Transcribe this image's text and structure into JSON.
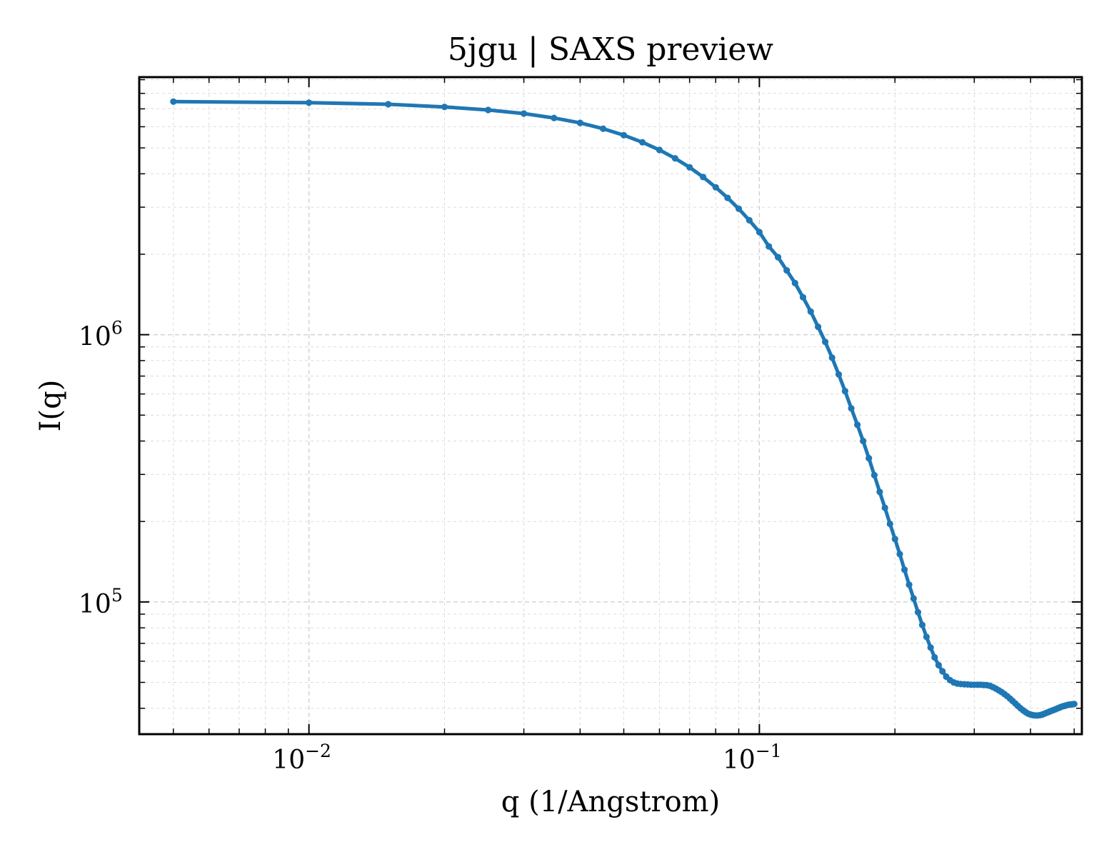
{
  "chart_data": {
    "type": "line",
    "title": "5jgu | SAXS preview",
    "xlabel": "q (1/Angstrom)",
    "ylabel": "I(q)",
    "xscale": "log",
    "yscale": "log",
    "xlim": [
      0.0042,
      0.52
    ],
    "ylim": [
      32000,
      9200000
    ],
    "xticks": [
      {
        "value": 0.01,
        "base": "10",
        "exp": "−2"
      },
      {
        "value": 0.1,
        "base": "10",
        "exp": "−1"
      }
    ],
    "yticks": [
      {
        "value": 100000,
        "base": "10",
        "exp": "5"
      },
      {
        "value": 1000000,
        "base": "10",
        "exp": "6"
      }
    ],
    "grid": true,
    "series": [
      {
        "color": "#1f77b4",
        "marker": "circle",
        "x": [
          0.005,
          0.01,
          0.015,
          0.02,
          0.025,
          0.03,
          0.035,
          0.04,
          0.045,
          0.05,
          0.055,
          0.06,
          0.065,
          0.07,
          0.075,
          0.08,
          0.085,
          0.09,
          0.095,
          0.1,
          0.105,
          0.11,
          0.115,
          0.12,
          0.125,
          0.13,
          0.135,
          0.14,
          0.145,
          0.15,
          0.155,
          0.16,
          0.165,
          0.17,
          0.175,
          0.18,
          0.185,
          0.19,
          0.195,
          0.2,
          0.205,
          0.21,
          0.215,
          0.22,
          0.225,
          0.23,
          0.235,
          0.24,
          0.245,
          0.25,
          0.255,
          0.26,
          0.265,
          0.27,
          0.275,
          0.28,
          0.285,
          0.29,
          0.295,
          0.3,
          0.305,
          0.31,
          0.315,
          0.32,
          0.325,
          0.33,
          0.335,
          0.34,
          0.345,
          0.35,
          0.355,
          0.36,
          0.365,
          0.37,
          0.375,
          0.38,
          0.385,
          0.39,
          0.395,
          0.4,
          0.405,
          0.41,
          0.415,
          0.42,
          0.425,
          0.43,
          0.435,
          0.44,
          0.445,
          0.45,
          0.455,
          0.46,
          0.465,
          0.47,
          0.475,
          0.48,
          0.485,
          0.49,
          0.495,
          0.5
        ],
        "y": [
          7450000,
          7380000,
          7280000,
          7120000,
          6930000,
          6720000,
          6470000,
          6200000,
          5900000,
          5580000,
          5250000,
          4910000,
          4570000,
          4230000,
          3890000,
          3560000,
          3250000,
          2960000,
          2680000,
          2420000,
          2140000,
          1950000,
          1740000,
          1560000,
          1380000,
          1220000,
          1070000,
          940000,
          820000,
          710000,
          615000,
          530000,
          460000,
          400000,
          345000,
          298000,
          258000,
          225000,
          196000,
          172000,
          151000,
          132000,
          116000,
          103000,
          91500,
          82000,
          74000,
          67500,
          62000,
          58000,
          55000,
          52500,
          51000,
          50000,
          49500,
          49300,
          49200,
          49100,
          49000,
          49000,
          49000,
          49000,
          48900,
          48800,
          48500,
          48000,
          47400,
          46700,
          46000,
          45200,
          44400,
          43500,
          42600,
          41700,
          40800,
          40000,
          39300,
          38700,
          38200,
          37900,
          37700,
          37600,
          37600,
          37700,
          37900,
          38200,
          38500,
          38800,
          39100,
          39400,
          39700,
          40000,
          40300,
          40600,
          40800,
          41000,
          41200,
          41300,
          41400,
          41500
        ]
      }
    ]
  }
}
